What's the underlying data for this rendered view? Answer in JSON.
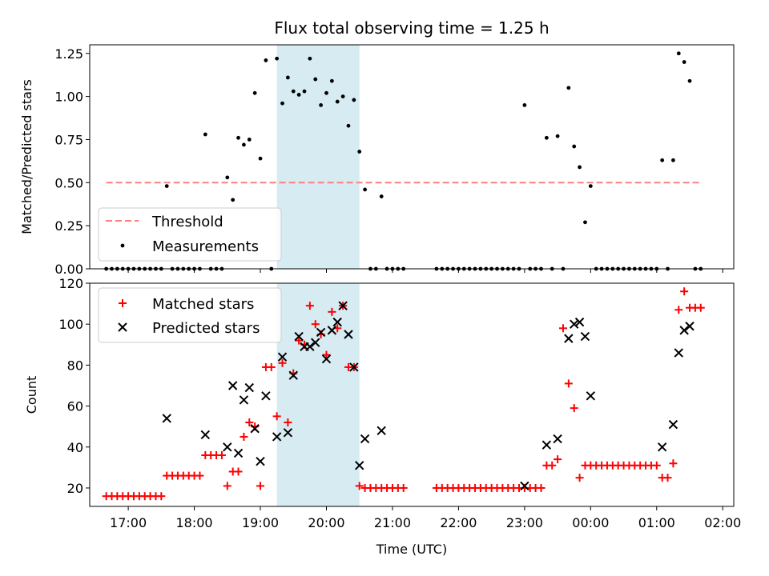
{
  "title": "Flux total observing time = 1.25 h",
  "colors": {
    "threshold": "#ff7f7f",
    "measurement": "#000000",
    "matched": "#ff0000",
    "predicted": "#000000",
    "window": "#add8e6"
  },
  "chart_data": [
    {
      "type": "scatter",
      "ylabel": "Matched/Predicted stars",
      "ylim": [
        0,
        1.3
      ],
      "yticks": [
        0,
        0.25,
        0.5,
        0.75,
        1.0,
        1.25
      ],
      "ytick_labels": [
        "0.00",
        "0.25",
        "0.50",
        "0.75",
        "1.00",
        "1.25"
      ],
      "xlim": [
        "16:25",
        "02:10"
      ],
      "highlight_window": [
        "19:15",
        "20:30"
      ],
      "threshold": {
        "value": 0.5,
        "x_range": [
          "16:40",
          "01:40"
        ],
        "label": "Threshold",
        "style": "dashed"
      },
      "legend": {
        "position": "lower-left",
        "entries": [
          "Threshold",
          "Measurements"
        ]
      },
      "series": [
        {
          "name": "Measurements",
          "marker": "dot",
          "points": [
            [
              "16:40",
              0
            ],
            [
              "16:45",
              0
            ],
            [
              "16:50",
              0
            ],
            [
              "16:55",
              0
            ],
            [
              "17:00",
              0
            ],
            [
              "17:05",
              0
            ],
            [
              "17:10",
              0
            ],
            [
              "17:15",
              0
            ],
            [
              "17:20",
              0
            ],
            [
              "17:25",
              0
            ],
            [
              "17:30",
              0
            ],
            [
              "17:35",
              0.48
            ],
            [
              "17:40",
              0
            ],
            [
              "17:45",
              0
            ],
            [
              "17:50",
              0
            ],
            [
              "17:55",
              0
            ],
            [
              "18:00",
              0
            ],
            [
              "18:05",
              0
            ],
            [
              "18:10",
              0.78
            ],
            [
              "18:15",
              0
            ],
            [
              "18:20",
              0
            ],
            [
              "18:25",
              0
            ],
            [
              "18:30",
              0.53
            ],
            [
              "18:35",
              0.4
            ],
            [
              "18:40",
              0.76
            ],
            [
              "18:45",
              0.72
            ],
            [
              "18:50",
              0.75
            ],
            [
              "18:55",
              1.02
            ],
            [
              "19:00",
              0.64
            ],
            [
              "19:05",
              1.21
            ],
            [
              "19:10",
              0
            ],
            [
              "19:15",
              1.22
            ],
            [
              "19:20",
              0.96
            ],
            [
              "19:25",
              1.11
            ],
            [
              "19:30",
              1.03
            ],
            [
              "19:35",
              1.01
            ],
            [
              "19:40",
              1.03
            ],
            [
              "19:45",
              1.22
            ],
            [
              "19:50",
              1.1
            ],
            [
              "19:55",
              0.95
            ],
            [
              "20:00",
              1.02
            ],
            [
              "20:05",
              1.09
            ],
            [
              "20:10",
              0.97
            ],
            [
              "20:15",
              1.0
            ],
            [
              "20:20",
              0.83
            ],
            [
              "20:25",
              0.98
            ],
            [
              "20:30",
              0.68
            ],
            [
              "20:35",
              0.46
            ],
            [
              "20:40",
              0
            ],
            [
              "20:45",
              0
            ],
            [
              "20:50",
              0.42
            ],
            [
              "20:55",
              0
            ],
            [
              "21:00",
              0
            ],
            [
              "21:05",
              0
            ],
            [
              "21:10",
              0
            ],
            [
              "21:40",
              0
            ],
            [
              "21:45",
              0
            ],
            [
              "21:50",
              0
            ],
            [
              "21:55",
              0
            ],
            [
              "22:00",
              0
            ],
            [
              "22:05",
              0
            ],
            [
              "22:10",
              0
            ],
            [
              "22:15",
              0
            ],
            [
              "22:20",
              0
            ],
            [
              "22:25",
              0
            ],
            [
              "22:30",
              0
            ],
            [
              "22:35",
              0
            ],
            [
              "22:40",
              0
            ],
            [
              "22:45",
              0
            ],
            [
              "22:50",
              0
            ],
            [
              "22:55",
              0
            ],
            [
              "23:00",
              0.95
            ],
            [
              "23:05",
              0
            ],
            [
              "23:10",
              0
            ],
            [
              "23:15",
              0
            ],
            [
              "23:20",
              0.76
            ],
            [
              "23:25",
              0
            ],
            [
              "23:30",
              0.77
            ],
            [
              "23:35",
              0
            ],
            [
              "23:40",
              1.05
            ],
            [
              "23:45",
              0.71
            ],
            [
              "23:50",
              0.59
            ],
            [
              "23:55",
              0.27
            ],
            [
              "00:00",
              0.48
            ],
            [
              "00:05",
              0
            ],
            [
              "00:10",
              0
            ],
            [
              "00:15",
              0
            ],
            [
              "00:20",
              0
            ],
            [
              "00:25",
              0
            ],
            [
              "00:30",
              0
            ],
            [
              "00:35",
              0
            ],
            [
              "00:40",
              0
            ],
            [
              "00:45",
              0
            ],
            [
              "00:50",
              0
            ],
            [
              "00:55",
              0
            ],
            [
              "01:00",
              0
            ],
            [
              "01:05",
              0.63
            ],
            [
              "01:10",
              0
            ],
            [
              "01:15",
              0.63
            ],
            [
              "01:20",
              1.25
            ],
            [
              "01:25",
              1.2
            ],
            [
              "01:30",
              1.09
            ],
            [
              "01:35",
              0
            ],
            [
              "01:40",
              0
            ]
          ]
        }
      ]
    },
    {
      "type": "scatter",
      "xlabel": "Time (UTC)",
      "ylabel": "Count",
      "ylim": [
        11,
        120
      ],
      "yticks": [
        20,
        40,
        60,
        80,
        100,
        120
      ],
      "xlim": [
        "16:25",
        "02:10"
      ],
      "xticks": [
        "17:00",
        "18:00",
        "19:00",
        "20:00",
        "21:00",
        "22:00",
        "23:00",
        "00:00",
        "01:00",
        "02:00"
      ],
      "highlight_window": [
        "19:15",
        "20:30"
      ],
      "legend": {
        "position": "top-left",
        "entries": [
          "Matched stars",
          "Predicted stars"
        ]
      },
      "series": [
        {
          "name": "Matched stars",
          "marker": "plus",
          "points": [
            [
              "16:40",
              16
            ],
            [
              "16:45",
              16
            ],
            [
              "16:50",
              16
            ],
            [
              "16:55",
              16
            ],
            [
              "17:00",
              16
            ],
            [
              "17:05",
              16
            ],
            [
              "17:10",
              16
            ],
            [
              "17:15",
              16
            ],
            [
              "17:20",
              16
            ],
            [
              "17:25",
              16
            ],
            [
              "17:30",
              16
            ],
            [
              "17:35",
              26
            ],
            [
              "17:40",
              26
            ],
            [
              "17:45",
              26
            ],
            [
              "17:50",
              26
            ],
            [
              "17:55",
              26
            ],
            [
              "18:00",
              26
            ],
            [
              "18:05",
              26
            ],
            [
              "18:10",
              36
            ],
            [
              "18:15",
              36
            ],
            [
              "18:20",
              36
            ],
            [
              "18:25",
              36
            ],
            [
              "18:30",
              21
            ],
            [
              "18:35",
              28
            ],
            [
              "18:40",
              28
            ],
            [
              "18:45",
              45
            ],
            [
              "18:50",
              52
            ],
            [
              "18:55",
              50
            ],
            [
              "19:00",
              21
            ],
            [
              "19:05",
              79
            ],
            [
              "19:10",
              79
            ],
            [
              "19:15",
              55
            ],
            [
              "19:20",
              81
            ],
            [
              "19:25",
              52
            ],
            [
              "19:30",
              76
            ],
            [
              "19:35",
              92
            ],
            [
              "19:40",
              90
            ],
            [
              "19:45",
              109
            ],
            [
              "19:50",
              100
            ],
            [
              "19:55",
              95
            ],
            [
              "20:00",
              85
            ],
            [
              "20:05",
              106
            ],
            [
              "20:10",
              98
            ],
            [
              "20:15",
              109
            ],
            [
              "20:20",
              79
            ],
            [
              "20:25",
              79
            ],
            [
              "20:30",
              21
            ],
            [
              "20:35",
              20
            ],
            [
              "20:40",
              20
            ],
            [
              "20:45",
              20
            ],
            [
              "20:50",
              20
            ],
            [
              "20:55",
              20
            ],
            [
              "21:00",
              20
            ],
            [
              "21:05",
              20
            ],
            [
              "21:10",
              20
            ],
            [
              "21:40",
              20
            ],
            [
              "21:45",
              20
            ],
            [
              "21:50",
              20
            ],
            [
              "21:55",
              20
            ],
            [
              "22:00",
              20
            ],
            [
              "22:05",
              20
            ],
            [
              "22:10",
              20
            ],
            [
              "22:15",
              20
            ],
            [
              "22:20",
              20
            ],
            [
              "22:25",
              20
            ],
            [
              "22:30",
              20
            ],
            [
              "22:35",
              20
            ],
            [
              "22:40",
              20
            ],
            [
              "22:45",
              20
            ],
            [
              "22:50",
              20
            ],
            [
              "22:55",
              20
            ],
            [
              "23:00",
              20
            ],
            [
              "23:05",
              20
            ],
            [
              "23:10",
              20
            ],
            [
              "23:15",
              20
            ],
            [
              "23:20",
              31
            ],
            [
              "23:25",
              31
            ],
            [
              "23:30",
              34
            ],
            [
              "23:35",
              98
            ],
            [
              "23:40",
              71
            ],
            [
              "23:45",
              59
            ],
            [
              "23:50",
              25
            ],
            [
              "23:55",
              31
            ],
            [
              "00:00",
              31
            ],
            [
              "00:05",
              31
            ],
            [
              "00:10",
              31
            ],
            [
              "00:15",
              31
            ],
            [
              "00:20",
              31
            ],
            [
              "00:25",
              31
            ],
            [
              "00:30",
              31
            ],
            [
              "00:35",
              31
            ],
            [
              "00:40",
              31
            ],
            [
              "00:45",
              31
            ],
            [
              "00:50",
              31
            ],
            [
              "00:55",
              31
            ],
            [
              "01:00",
              31
            ],
            [
              "01:05",
              25
            ],
            [
              "01:10",
              25
            ],
            [
              "01:15",
              32
            ],
            [
              "01:20",
              107
            ],
            [
              "01:25",
              116
            ],
            [
              "01:30",
              108
            ],
            [
              "01:35",
              108
            ],
            [
              "01:40",
              108
            ]
          ]
        },
        {
          "name": "Predicted stars",
          "marker": "x",
          "points": [
            [
              "17:35",
              54
            ],
            [
              "18:10",
              46
            ],
            [
              "18:30",
              40
            ],
            [
              "18:35",
              70
            ],
            [
              "18:40",
              37
            ],
            [
              "18:45",
              63
            ],
            [
              "18:50",
              69
            ],
            [
              "18:55",
              49
            ],
            [
              "19:00",
              33
            ],
            [
              "19:05",
              65
            ],
            [
              "19:15",
              45
            ],
            [
              "19:20",
              84
            ],
            [
              "19:25",
              47
            ],
            [
              "19:30",
              75
            ],
            [
              "19:35",
              94
            ],
            [
              "19:40",
              89
            ],
            [
              "19:45",
              89
            ],
            [
              "19:50",
              91
            ],
            [
              "19:55",
              96
            ],
            [
              "20:00",
              83
            ],
            [
              "20:05",
              97
            ],
            [
              "20:10",
              101
            ],
            [
              "20:15",
              109
            ],
            [
              "20:20",
              95
            ],
            [
              "20:25",
              79
            ],
            [
              "20:30",
              31
            ],
            [
              "20:35",
              44
            ],
            [
              "20:50",
              48
            ],
            [
              "23:00",
              21
            ],
            [
              "23:20",
              41
            ],
            [
              "23:30",
              44
            ],
            [
              "23:40",
              93
            ],
            [
              "23:45",
              100
            ],
            [
              "23:50",
              101
            ],
            [
              "23:55",
              94
            ],
            [
              "00:00",
              65
            ],
            [
              "01:05",
              40
            ],
            [
              "01:15",
              51
            ],
            [
              "01:20",
              86
            ],
            [
              "01:25",
              97
            ],
            [
              "01:30",
              99
            ]
          ]
        }
      ]
    }
  ]
}
